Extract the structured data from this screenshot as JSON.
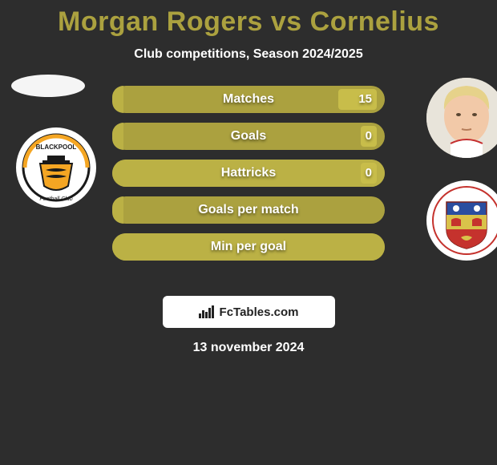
{
  "title_color": "#aba13f",
  "player_left": "Morgan Rogers",
  "vs_text": "vs",
  "player_right": "Cornelius",
  "subtitle": "Club competitions, Season 2024/2025",
  "date": "13 november 2024",
  "branding_text": "FcTables.com",
  "colors": {
    "background": "#2d2d2d",
    "bar_track": "#aba13f",
    "bar_left_fill": "#bbb145",
    "bar_right_fill": "#c8bd4a",
    "text": "#ffffff"
  },
  "bars": [
    {
      "label": "Matches",
      "left_pct": 4,
      "right_pct": 14,
      "right_value": "15"
    },
    {
      "label": "Goals",
      "left_pct": 4,
      "right_pct": 6,
      "right_value": "0"
    },
    {
      "label": "Hattricks",
      "left_pct": 100,
      "right_pct": 6,
      "right_value": "0"
    },
    {
      "label": "Goals per match",
      "left_pct": 4,
      "right_pct": 0,
      "right_value": ""
    },
    {
      "label": "Min per goal",
      "left_pct": 100,
      "right_pct": 0,
      "right_value": ""
    }
  ],
  "avatars": {
    "left_club_label": "BLACKPOOL",
    "right_player_hair": "#e6d28a",
    "right_player_skin": "#f2c9a8",
    "right_club_colors": {
      "top": "#2a4ea0",
      "mid": "#d9c24a",
      "bottom": "#c5322d"
    }
  }
}
